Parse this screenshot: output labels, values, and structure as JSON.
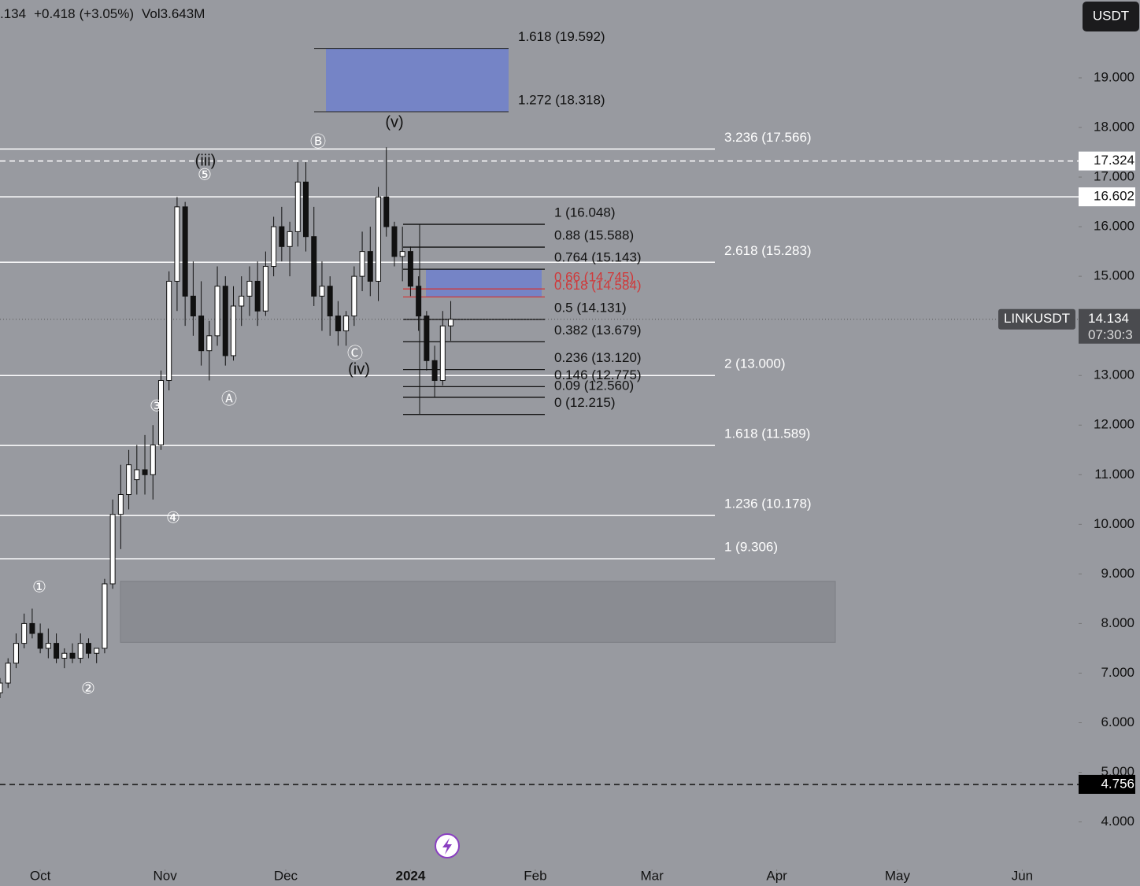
{
  "chart_data": {
    "type": "candlestick",
    "header": {
      "last": ".134",
      "change": "+0.418",
      "change_pct": "(+3.05%)",
      "volume": "Vol3.643M"
    },
    "currency_button": "USDT",
    "symbol": "LINKUSDT",
    "last_price": 14.134,
    "countdown": "07:30:3",
    "x": [
      -10,
      -8,
      -6,
      -4,
      -2,
      0,
      2,
      4,
      6,
      8,
      10,
      12,
      14,
      16,
      18,
      20,
      22,
      24,
      26,
      28,
      30,
      32,
      34,
      36,
      38,
      40,
      42,
      44,
      46,
      48,
      50,
      52,
      54,
      56,
      58,
      60,
      62,
      64,
      66,
      68,
      70,
      72,
      74,
      76,
      78,
      80,
      82,
      84,
      86,
      88,
      90,
      92,
      94,
      96,
      98,
      100,
      102
    ],
    "open": [
      6.6,
      6.8,
      7.2,
      7.6,
      8.0,
      7.8,
      7.5,
      7.6,
      7.3,
      7.4,
      7.3,
      7.6,
      7.4,
      7.5,
      8.8,
      10.2,
      10.6,
      10.9,
      11.1,
      11.0,
      11.6,
      12.9,
      14.9,
      16.4,
      14.6,
      14.2,
      13.5,
      13.8,
      14.8,
      13.4,
      14.4,
      14.6,
      14.9,
      14.3,
      15.2,
      16.0,
      15.6,
      15.9,
      16.9,
      15.8,
      14.6,
      14.8,
      14.2,
      13.9,
      14.2,
      15.0,
      15.5,
      14.9,
      16.6,
      16.0,
      15.4,
      15.5,
      14.8,
      14.2,
      13.3,
      12.9,
      14.0
    ],
    "high": [
      6.9,
      7.3,
      7.8,
      8.2,
      8.3,
      8.0,
      7.9,
      7.8,
      7.5,
      7.6,
      7.8,
      7.7,
      7.5,
      8.9,
      10.5,
      11.2,
      11.5,
      11.6,
      11.8,
      12.0,
      13.1,
      15.1,
      16.6,
      16.5,
      15.3,
      14.9,
      14.1,
      15.2,
      15.0,
      14.8,
      15.0,
      15.2,
      15.3,
      15.5,
      16.2,
      16.4,
      16.1,
      17.3,
      17.3,
      16.4,
      15.3,
      15.0,
      14.5,
      14.3,
      15.2,
      15.9,
      16.0,
      16.8,
      17.6,
      16.1,
      16.0,
      15.6,
      15.0,
      14.3,
      13.6,
      14.3,
      14.5
    ],
    "low": [
      6.5,
      6.7,
      7.1,
      7.5,
      7.7,
      7.4,
      7.3,
      7.2,
      7.1,
      7.2,
      7.2,
      7.3,
      7.2,
      7.4,
      8.7,
      9.5,
      10.3,
      10.6,
      10.6,
      10.5,
      11.5,
      12.7,
      14.3,
      14.0,
      13.8,
      13.2,
      12.9,
      13.6,
      13.2,
      13.3,
      14.0,
      14.2,
      14.0,
      14.2,
      15.0,
      15.3,
      15.0,
      15.6,
      15.5,
      14.4,
      13.9,
      13.8,
      13.6,
      13.6,
      14.0,
      14.7,
      14.6,
      14.5,
      15.8,
      15.2,
      14.9,
      14.6,
      13.9,
      13.1,
      12.56,
      12.8,
      13.7
    ],
    "close": [
      6.8,
      7.2,
      7.6,
      8.0,
      7.8,
      7.5,
      7.6,
      7.3,
      7.4,
      7.3,
      7.6,
      7.4,
      7.5,
      8.8,
      10.2,
      10.6,
      11.2,
      11.1,
      11.0,
      11.6,
      12.9,
      14.9,
      16.4,
      14.6,
      14.2,
      13.5,
      13.8,
      14.8,
      13.4,
      14.4,
      14.6,
      14.9,
      14.3,
      15.2,
      16.0,
      15.6,
      15.9,
      16.9,
      15.8,
      14.6,
      14.8,
      14.2,
      13.9,
      14.2,
      15.0,
      15.5,
      14.9,
      16.6,
      16.0,
      15.4,
      15.5,
      14.8,
      14.2,
      13.3,
      12.9,
      14.0,
      14.134
    ],
    "xlim": [
      -10,
      258
    ],
    "xticks": [
      {
        "value": 0,
        "label": "Oct"
      },
      {
        "value": 31,
        "label": "Nov"
      },
      {
        "value": 61,
        "label": "Dec"
      },
      {
        "value": 92,
        "label": "2024"
      },
      {
        "value": 123,
        "label": "Feb"
      },
      {
        "value": 152,
        "label": "Mar"
      },
      {
        "value": 183,
        "label": "Apr"
      },
      {
        "value": 213,
        "label": "May"
      },
      {
        "value": 244,
        "label": "Jun"
      }
    ],
    "ylim": [
      3.2,
      20.57
    ],
    "yticks": [
      {
        "value": 4,
        "label": "4.000"
      },
      {
        "value": 5,
        "label": "5.000"
      },
      {
        "value": 6,
        "label": "6.000"
      },
      {
        "value": 7,
        "label": "7.000"
      },
      {
        "value": 8,
        "label": "8.000"
      },
      {
        "value": 9,
        "label": "9.000"
      },
      {
        "value": 10,
        "label": "10.000"
      },
      {
        "value": 11,
        "label": "11.000"
      },
      {
        "value": 12,
        "label": "12.000"
      },
      {
        "value": 13,
        "label": "13.000"
      },
      {
        "value": 14,
        "label": "14.000"
      },
      {
        "value": 15,
        "label": "15.000"
      },
      {
        "value": 16,
        "label": "16.000"
      },
      {
        "value": 17,
        "label": "17.000"
      },
      {
        "value": 18,
        "label": "18.000"
      },
      {
        "value": 19,
        "label": "19.000"
      }
    ],
    "price_lines": [
      {
        "value": 17.324,
        "style": "dashed"
      },
      {
        "value": 16.602,
        "style": "solid"
      },
      {
        "value": 4.756,
        "style": "dashed"
      }
    ],
    "extensions": [
      {
        "value": 17.566,
        "label": "3.236 (17.566)"
      },
      {
        "value": 15.283,
        "label": "2.618 (15.283)"
      },
      {
        "value": 13.0,
        "label": "2 (13.000)"
      },
      {
        "value": 11.589,
        "label": "1.618 (11.589)"
      },
      {
        "value": 10.178,
        "label": "1.236 (10.178)"
      },
      {
        "value": 9.306,
        "label": "1 (9.306)"
      }
    ],
    "retracement": [
      {
        "value": 16.048,
        "label": "1 (16.048)",
        "color": "#111111"
      },
      {
        "value": 15.588,
        "label": "0.88 (15.588)",
        "color": "#111111"
      },
      {
        "value": 15.143,
        "label": "0.764 (15.143)",
        "color": "#111111"
      },
      {
        "value": 14.745,
        "label": "0.66 (14.745)",
        "color": "#d0393a"
      },
      {
        "value": 14.584,
        "label": "0.618 (14.584)",
        "color": "#d0393a"
      },
      {
        "value": 14.131,
        "label": "0.5 (14.131)",
        "color": "#111111"
      },
      {
        "value": 13.679,
        "label": "0.382 (13.679)",
        "color": "#111111"
      },
      {
        "value": 13.12,
        "label": "0.236 (13.120)",
        "color": "#111111"
      },
      {
        "value": 12.775,
        "label": "0.146 (12.775)",
        "color": "#111111"
      },
      {
        "value": 12.56,
        "label": "0.09 (12.560)",
        "color": "#111111"
      },
      {
        "value": 12.215,
        "label": "0 (12.215)",
        "color": "#111111"
      }
    ],
    "target_box": {
      "top": 19.592,
      "bottom": 18.318,
      "top_label": "1.618 (19.592)",
      "bottom_label": "1.272 (18.318)"
    },
    "reaction_box": {
      "top": 15.14,
      "bottom": 14.58
    },
    "support_box": {
      "top": 8.85,
      "bottom": 7.62
    },
    "wave_labels": [
      "①",
      "②",
      "③",
      "④",
      "⑤",
      "(iii)",
      "Ⓐ",
      "Ⓑ",
      "Ⓒ",
      "(iv)",
      "(v)"
    ]
  }
}
